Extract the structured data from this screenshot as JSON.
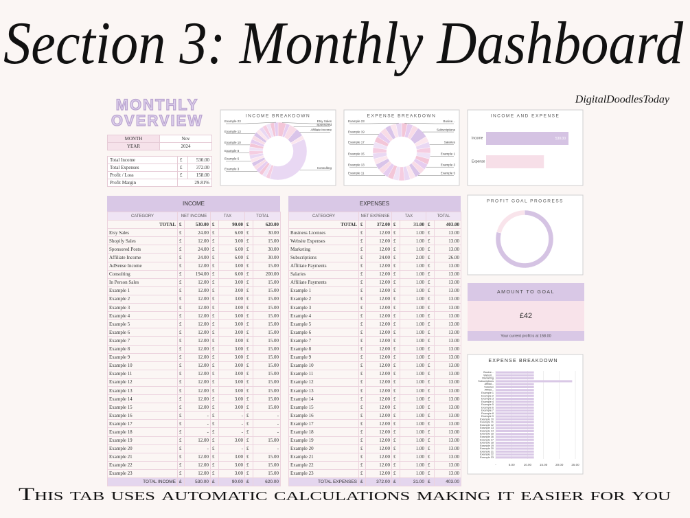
{
  "header": {
    "title": "Section 3: Monthly Dashboard",
    "brand": "DigitalDoodlesToday"
  },
  "footer": "This tab uses automatic calculations making it easier for you",
  "currency": "£",
  "overview": {
    "title_lines": [
      "MONTHLY",
      "OVERVIEW"
    ],
    "month": [
      "MONTH",
      "Nov"
    ],
    "year": [
      "YEAR",
      "2024"
    ],
    "summary": [
      [
        "Total Income",
        "£",
        "530.00"
      ],
      [
        "Total Expenses",
        "£",
        "372.00"
      ],
      [
        "Profit / Loss",
        "£",
        "158.00"
      ],
      [
        "Profit Margin",
        "29.81%"
      ]
    ]
  },
  "income_table": {
    "title": "INCOME",
    "columns": [
      "CATEGORY",
      "NET INCOME",
      "TAX",
      "TOTAL"
    ],
    "total": [
      "TOTAL",
      "530.00",
      "90.00",
      "620.00"
    ],
    "rows": [
      [
        "Etsy Sales",
        "24.00",
        "6.00",
        "30.00"
      ],
      [
        "Shopify Sales",
        "12.00",
        "3.00",
        "15.00"
      ],
      [
        "Sponsored Posts",
        "24.00",
        "6.00",
        "30.00"
      ],
      [
        "Affiliate Income",
        "24.00",
        "6.00",
        "30.00"
      ],
      [
        "AdSense Income",
        "12.00",
        "3.00",
        "15.00"
      ],
      [
        "Consulting",
        "194.00",
        "6.00",
        "200.00"
      ],
      [
        "In Person Sales",
        "12.00",
        "3.00",
        "15.00"
      ],
      [
        "Example 1",
        "12.00",
        "3.00",
        "15.00"
      ],
      [
        "Example 2",
        "12.00",
        "3.00",
        "15.00"
      ],
      [
        "Example 3",
        "12.00",
        "3.00",
        "15.00"
      ],
      [
        "Example 4",
        "12.00",
        "3.00",
        "15.00"
      ],
      [
        "Example 5",
        "12.00",
        "3.00",
        "15.00"
      ],
      [
        "Example 6",
        "12.00",
        "3.00",
        "15.00"
      ],
      [
        "Example 7",
        "12.00",
        "3.00",
        "15.00"
      ],
      [
        "Example 8",
        "12.00",
        "3.00",
        "15.00"
      ],
      [
        "Example 9",
        "12.00",
        "3.00",
        "15.00"
      ],
      [
        "Example 10",
        "12.00",
        "3.00",
        "15.00"
      ],
      [
        "Example 11",
        "12.00",
        "3.00",
        "15.00"
      ],
      [
        "Example 12",
        "12.00",
        "3.00",
        "15.00"
      ],
      [
        "Example 13",
        "12.00",
        "3.00",
        "15.00"
      ],
      [
        "Example 14",
        "12.00",
        "3.00",
        "15.00"
      ],
      [
        "Example 15",
        "12.00",
        "3.00",
        "15.00"
      ],
      [
        "Example 16",
        "-",
        "-",
        "-"
      ],
      [
        "Example 17",
        "-",
        "-",
        "-"
      ],
      [
        "Example 18",
        "-",
        "-",
        "-"
      ],
      [
        "Example 19",
        "12.00",
        "3.00",
        "15.00"
      ],
      [
        "Example 20",
        "-",
        "-",
        "-"
      ],
      [
        "Example 21",
        "12.00",
        "3.00",
        "15.00"
      ],
      [
        "Example 22",
        "12.00",
        "3.00",
        "15.00"
      ],
      [
        "Example 23",
        "12.00",
        "3.00",
        "15.00"
      ]
    ],
    "footer": [
      "TOTAL INCOME",
      "530.00",
      "90.00",
      "620.00"
    ]
  },
  "expense_table": {
    "title": "EXPENSES",
    "columns": [
      "CATEGORY",
      "NET EXPENSE",
      "TAX",
      "TOTAL"
    ],
    "total": [
      "TOTAL",
      "372.00",
      "31.00",
      "403.00"
    ],
    "rows": [
      [
        "Business Licenses",
        "12.00",
        "1.00",
        "13.00"
      ],
      [
        "Website Expenses",
        "12.00",
        "1.00",
        "13.00"
      ],
      [
        "Marketing",
        "12.00",
        "1.00",
        "13.00"
      ],
      [
        "Subscriptions",
        "24.00",
        "2.00",
        "26.00"
      ],
      [
        "Affiliate Payments",
        "12.00",
        "1.00",
        "13.00"
      ],
      [
        "Salaries",
        "12.00",
        "1.00",
        "13.00"
      ],
      [
        "Affiliate Payments",
        "12.00",
        "1.00",
        "13.00"
      ],
      [
        "Example 1",
        "12.00",
        "1.00",
        "13.00"
      ],
      [
        "Example 2",
        "12.00",
        "1.00",
        "13.00"
      ],
      [
        "Example 3",
        "12.00",
        "1.00",
        "13.00"
      ],
      [
        "Example 4",
        "12.00",
        "1.00",
        "13.00"
      ],
      [
        "Example 5",
        "12.00",
        "1.00",
        "13.00"
      ],
      [
        "Example 6",
        "12.00",
        "1.00",
        "13.00"
      ],
      [
        "Example 7",
        "12.00",
        "1.00",
        "13.00"
      ],
      [
        "Example 8",
        "12.00",
        "1.00",
        "13.00"
      ],
      [
        "Example 9",
        "12.00",
        "1.00",
        "13.00"
      ],
      [
        "Example 10",
        "12.00",
        "1.00",
        "13.00"
      ],
      [
        "Example 11",
        "12.00",
        "1.00",
        "13.00"
      ],
      [
        "Example 12",
        "12.00",
        "1.00",
        "13.00"
      ],
      [
        "Example 13",
        "12.00",
        "1.00",
        "13.00"
      ],
      [
        "Example 14",
        "12.00",
        "1.00",
        "13.00"
      ],
      [
        "Example 15",
        "12.00",
        "1.00",
        "13.00"
      ],
      [
        "Example 16",
        "12.00",
        "1.00",
        "13.00"
      ],
      [
        "Example 17",
        "12.00",
        "1.00",
        "13.00"
      ],
      [
        "Example 18",
        "12.00",
        "1.00",
        "13.00"
      ],
      [
        "Example 19",
        "12.00",
        "1.00",
        "13.00"
      ],
      [
        "Example 20",
        "12.00",
        "1.00",
        "13.00"
      ],
      [
        "Example 21",
        "12.00",
        "1.00",
        "13.00"
      ],
      [
        "Example 22",
        "12.00",
        "1.00",
        "13.00"
      ],
      [
        "Example 23",
        "12.00",
        "1.00",
        "13.00"
      ]
    ],
    "footer": [
      "TOTAL EXPENSES",
      "372.00",
      "31.00",
      "403.00"
    ]
  },
  "palette": [
    "#f3c6d8",
    "#e6cdf0",
    "#f8dce7",
    "#d9c4e9",
    "#fbe6ee",
    "#e9d8f3",
    "#f5cde1",
    "#efe2f6"
  ],
  "income_breakdown": {
    "type": "pie",
    "title": "INCOME BREAKDOWN",
    "categories": [
      "Etsy Sales",
      null,
      "Sponsored",
      "Affiliate Income",
      null,
      "Consulting",
      null,
      null,
      null,
      "Example 3",
      null,
      null,
      "Example 6",
      null,
      "Example 8",
      null,
      "Example 10",
      null,
      null,
      "Example 13",
      null,
      null,
      null,
      null,
      null,
      "Example 23"
    ],
    "values": [
      24,
      12,
      24,
      24,
      12,
      194,
      12,
      12,
      12,
      12,
      12,
      12,
      12,
      12,
      12,
      12,
      12,
      12,
      12,
      12,
      12,
      12,
      12,
      12,
      12,
      12
    ]
  },
  "expense_breakdown": {
    "type": "pie",
    "title": "EXPENSE BREAKDOWN",
    "categories": [
      "Busine...",
      null,
      null,
      "Subscriptions",
      null,
      "Salaries",
      null,
      "Example 1",
      null,
      "Example 3",
      null,
      "Example 5",
      null,
      null,
      null,
      null,
      null,
      "Example 11",
      null,
      "Example 13",
      null,
      "Example 15",
      null,
      "Example 17",
      null,
      "Example 19",
      null,
      null,
      null,
      "Example 23"
    ],
    "values": [
      12,
      12,
      12,
      24,
      12,
      12,
      12,
      12,
      12,
      12,
      12,
      12,
      12,
      12,
      12,
      12,
      12,
      12,
      12,
      12,
      12,
      12,
      12,
      12,
      12,
      12,
      12,
      12,
      12,
      12
    ]
  },
  "income_expense": {
    "type": "bar",
    "title": "INCOME AND EXPENSE",
    "categories": [
      "Income",
      "Expense"
    ],
    "values": [
      530,
      372
    ],
    "value_labels": [
      "530.00",
      null
    ],
    "colors": [
      "#d5c3e3",
      "#f7dfe8"
    ]
  },
  "profit_goal": {
    "type": "pie",
    "title": "PROFIT GOAL PROGRESS",
    "values": [
      158,
      42
    ],
    "colors": [
      "#d5c3e3",
      "#f9e4eb"
    ]
  },
  "amount_to_goal": {
    "title": "AMOUNT TO GOAL",
    "amount": "£42",
    "note": "Your current profit is at 158.00"
  },
  "expense_bars": {
    "type": "bar",
    "title": "EXPENSE BREAKDOWN",
    "color": "#d9c8e6",
    "categories": [
      "Busine...",
      "Websit...",
      "Marketing",
      "Subscriptions",
      "Affiliat...",
      "Salaries",
      "Affiliat...",
      "Example 1",
      "Example 2",
      "Example 3",
      "Example 4",
      "Example 5",
      "Example 6",
      "Example 7",
      "Example 8",
      "Example 9",
      "Example 10",
      "Example 11",
      "Example 12",
      "Example 13",
      "Example 14",
      "Example 15",
      "Example 16",
      "Example 17",
      "Example 18",
      "Example 19",
      "Example 20",
      "Example 21",
      "Example 22",
      "Example 23"
    ],
    "values": [
      12,
      12,
      12,
      24,
      12,
      12,
      12,
      12,
      12,
      12,
      12,
      12,
      12,
      12,
      12,
      12,
      12,
      12,
      12,
      12,
      12,
      12,
      12,
      12,
      12,
      12,
      12,
      12,
      12,
      12
    ],
    "xlim": [
      0,
      25
    ],
    "xticks": [
      {
        "value": 0,
        "label": "-"
      },
      {
        "value": 5,
        "label": "5.00"
      },
      {
        "value": 10,
        "label": "10.00"
      },
      {
        "value": 15,
        "label": "15.00"
      },
      {
        "value": 20,
        "label": "20.00"
      },
      {
        "value": 25,
        "label": "25.00"
      }
    ],
    "grid": true
  }
}
